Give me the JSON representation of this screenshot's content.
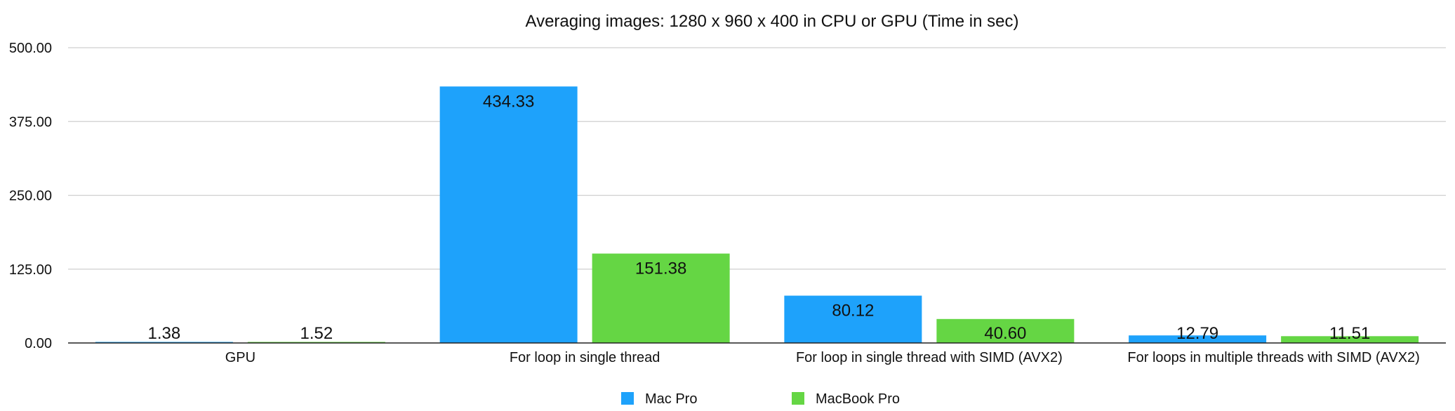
{
  "chart_data": {
    "type": "bar",
    "title": "Averaging images: 1280 x 960 x 400 in CPU or GPU (Time in sec)",
    "xlabel": "",
    "ylabel": "",
    "categories": [
      "GPU",
      "For loop in single thread",
      "For loop in single thread with SIMD (AVX2)",
      "For loops in multiple threads with SIMD (AVX2)"
    ],
    "series": [
      {
        "name": "Mac Pro",
        "color": "#1EA2FB",
        "values": [
          1.38,
          434.33,
          80.12,
          12.79
        ],
        "labels": [
          "1.38",
          "434.33",
          "80.12",
          "12.79"
        ]
      },
      {
        "name": "MacBook Pro",
        "color": "#65D644",
        "values": [
          1.52,
          151.38,
          40.6,
          11.51
        ],
        "labels": [
          "1.52",
          "151.38",
          "40.60",
          "11.51"
        ]
      }
    ],
    "ylim": [
      0,
      500
    ],
    "yticks": [
      0,
      125,
      250,
      375,
      500
    ],
    "ytick_labels": [
      "0.00",
      "125.00",
      "250.00",
      "375.00",
      "500.00"
    ],
    "grid": true,
    "legend_position": "bottom"
  }
}
